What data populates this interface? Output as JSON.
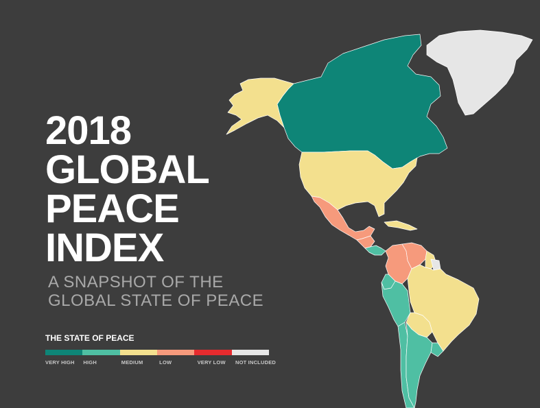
{
  "title": {
    "year": "2018",
    "line2": "GLOBAL",
    "line3": "PEACE",
    "line4": "INDEX"
  },
  "subtitle": {
    "line1": "A SNAPSHOT OF THE",
    "line2": "GLOBAL STATE OF PEACE"
  },
  "legend": {
    "title": "THE STATE OF PEACE",
    "categories": [
      {
        "label": "VERY HIGH",
        "color": "#0e8577"
      },
      {
        "label": "HIGH",
        "color": "#4fbfa3"
      },
      {
        "label": "MEDIUM",
        "color": "#f3e08e"
      },
      {
        "label": "LOW",
        "color": "#f69a7c"
      },
      {
        "label": "VERY LOW",
        "color": "#e62b2e"
      },
      {
        "label": "NOT INCLUDED",
        "color": "#e6e6e6"
      }
    ]
  },
  "map": {
    "regions": [
      {
        "name": "Canada",
        "category": "VERY HIGH"
      },
      {
        "name": "Greenland",
        "category": "NOT INCLUDED"
      },
      {
        "name": "United States of America",
        "category": "MEDIUM"
      },
      {
        "name": "Mexico",
        "category": "LOW"
      },
      {
        "name": "Central America",
        "category": "LOW"
      },
      {
        "name": "Costa Rica",
        "category": "HIGH"
      },
      {
        "name": "Panama",
        "category": "HIGH"
      },
      {
        "name": "Cuba",
        "category": "MEDIUM"
      },
      {
        "name": "Colombia",
        "category": "LOW"
      },
      {
        "name": "Venezuela",
        "category": "LOW"
      },
      {
        "name": "Guyana",
        "category": "MEDIUM"
      },
      {
        "name": "Suriname",
        "category": "MEDIUM"
      },
      {
        "name": "French Guiana",
        "category": "NOT INCLUDED"
      },
      {
        "name": "Ecuador",
        "category": "HIGH"
      },
      {
        "name": "Peru",
        "category": "HIGH"
      },
      {
        "name": "Brazil",
        "category": "MEDIUM"
      },
      {
        "name": "Bolivia",
        "category": "MEDIUM"
      },
      {
        "name": "Paraguay",
        "category": "MEDIUM"
      },
      {
        "name": "Chile",
        "category": "HIGH"
      },
      {
        "name": "Argentina",
        "category": "HIGH"
      },
      {
        "name": "Uruguay",
        "category": "HIGH"
      }
    ]
  }
}
